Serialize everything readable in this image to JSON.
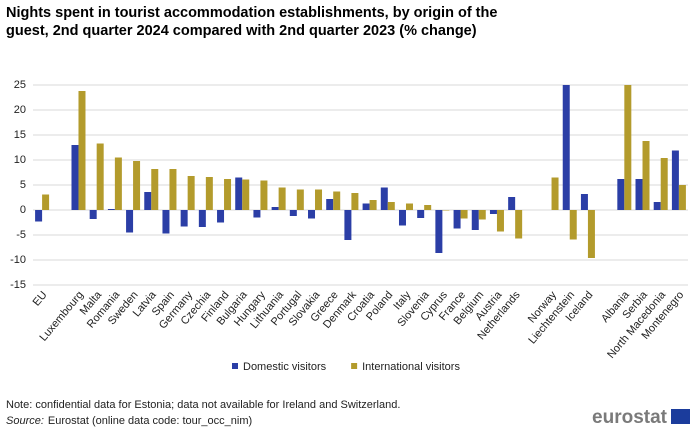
{
  "chart_data": {
    "type": "bar",
    "title": "Nights spent in tourist accommodation establishments, by origin of the guest, 2nd quarter 2024 compared with 2nd quarter 2023 (% change)",
    "categories": [
      "EU",
      null,
      "Luxembourg",
      "Malta",
      "Romania",
      "Sweden",
      "Latvia",
      "Spain",
      "Germany",
      "Czechia",
      "Finland",
      "Bulgaria",
      "Hungary",
      "Lithuania",
      "Portugal",
      "Slovakia",
      "Greece",
      "Denmark",
      "Croatia",
      "Poland",
      "Italy",
      "Slovenia",
      "Cyprus",
      "France",
      "Belgium",
      "Austria",
      "Netherlands",
      null,
      "Norway",
      "Liechtenstein",
      "Iceland",
      null,
      "Albania",
      "Serbia",
      "North Macedonia",
      "Montenegro"
    ],
    "series": [
      {
        "name": "Domestic visitors",
        "color": "#2b3ea6",
        "values": [
          -2.3,
          null,
          13,
          -1.8,
          0.2,
          -4.5,
          3.6,
          -4.7,
          -3.3,
          -3.4,
          -2.5,
          6.5,
          -1.5,
          0.6,
          -1.2,
          -1.7,
          2.2,
          -6.0,
          1.3,
          4.5,
          -3.1,
          -1.6,
          -8.6,
          -3.7,
          -4.0,
          -0.8,
          2.6,
          null,
          null,
          25,
          3.2,
          null,
          6.2,
          6.2,
          1.6,
          11.9
        ]
      },
      {
        "name": "International visitors",
        "color": "#b39b2c",
        "values": [
          3.1,
          null,
          23.8,
          13.3,
          10.5,
          9.8,
          8.2,
          8.2,
          6.8,
          6.6,
          6.2,
          6.1,
          5.9,
          4.5,
          4.1,
          4.1,
          3.7,
          3.4,
          2.0,
          1.6,
          1.3,
          1.0,
          0,
          -1.7,
          -1.9,
          -4.3,
          -5.7,
          null,
          6.5,
          -5.9,
          -9.6,
          null,
          25,
          13.8,
          10.4,
          5.0
        ]
      }
    ],
    "ylim": [
      -15,
      25
    ],
    "yticks": [
      -15,
      -10,
      -5,
      0,
      5,
      10,
      15,
      20,
      25
    ],
    "grid": true,
    "note": "Note: confidential data for Estonia; data not available for Ireland and Switzerland.",
    "source_label": "Source:",
    "source": "Eurostat (online data code: tour_occ_nim)",
    "logo": "eurostat"
  }
}
